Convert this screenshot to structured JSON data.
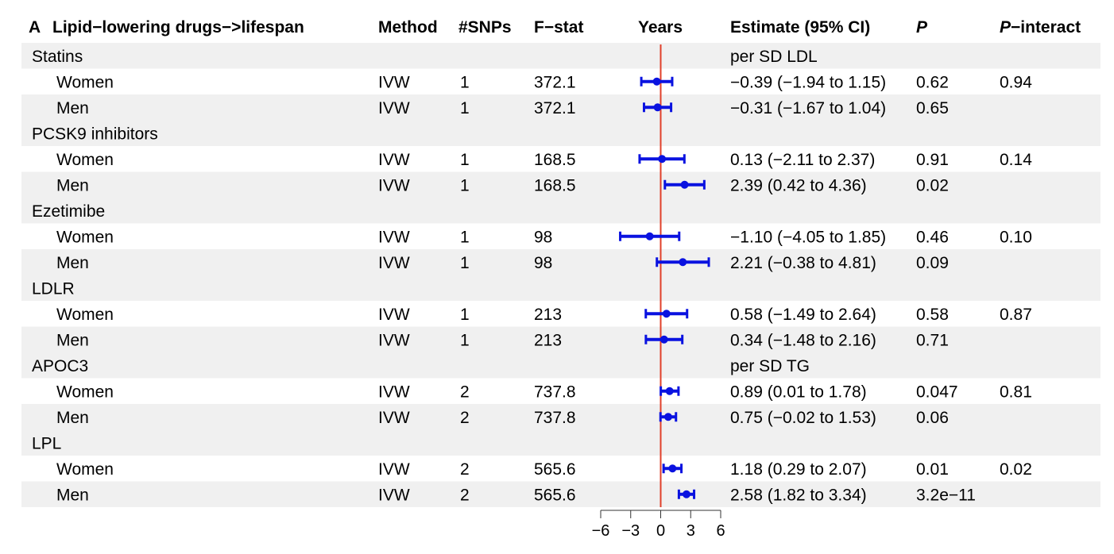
{
  "chart_data": {
    "type": "forest",
    "panel_label": "A",
    "title": "Lipid−lowering drugs−>lifespan",
    "headers": {
      "method": "Method",
      "snps": "#SNPs",
      "fstat": "F−stat",
      "years": "Years",
      "estimate": "Estimate (95% CI)",
      "p": "P",
      "p_interact_prefix": "P",
      "p_interact_suffix": "−interact"
    },
    "xlim": [
      -6,
      6
    ],
    "x_ticks": [
      -6,
      -3,
      0,
      3,
      6
    ],
    "x_tick_labels": [
      "−6",
      "−3",
      "0",
      "3",
      "6"
    ],
    "reference_line": 0,
    "colors": {
      "point": "#0a12e0",
      "reference": "#e0402a",
      "shade": "#f0f0f0"
    },
    "groups": [
      {
        "name": "Statins",
        "note": "per SD LDL",
        "rows": [
          {
            "label": "Women",
            "method": "IVW",
            "snps": "1",
            "fstat": "372.1",
            "est": -0.39,
            "lo": -1.94,
            "hi": 1.15,
            "ci_text": "−0.39 (−1.94 to 1.15)",
            "p": "0.62",
            "p_interact": "0.94"
          },
          {
            "label": "Men",
            "method": "IVW",
            "snps": "1",
            "fstat": "372.1",
            "est": -0.31,
            "lo": -1.67,
            "hi": 1.04,
            "ci_text": "−0.31 (−1.67 to 1.04)",
            "p": "0.65",
            "p_interact": ""
          }
        ]
      },
      {
        "name": "PCSK9 inhibitors",
        "note": "",
        "rows": [
          {
            "label": "Women",
            "method": "IVW",
            "snps": "1",
            "fstat": "168.5",
            "est": 0.13,
            "lo": -2.11,
            "hi": 2.37,
            "ci_text": "0.13 (−2.11 to 2.37)",
            "p": "0.91",
            "p_interact": "0.14"
          },
          {
            "label": "Men",
            "method": "IVW",
            "snps": "1",
            "fstat": "168.5",
            "est": 2.39,
            "lo": 0.42,
            "hi": 4.36,
            "ci_text": "2.39 (0.42 to 4.36)",
            "p": "0.02",
            "p_interact": ""
          }
        ]
      },
      {
        "name": "Ezetimibe",
        "note": "",
        "rows": [
          {
            "label": "Women",
            "method": "IVW",
            "snps": "1",
            "fstat": "98",
            "est": -1.1,
            "lo": -4.05,
            "hi": 1.85,
            "ci_text": "−1.10 (−4.05 to 1.85)",
            "p": "0.46",
            "p_interact": "0.10"
          },
          {
            "label": "Men",
            "method": "IVW",
            "snps": "1",
            "fstat": "98",
            "est": 2.21,
            "lo": -0.38,
            "hi": 4.81,
            "ci_text": "2.21 (−0.38 to 4.81)",
            "p": "0.09",
            "p_interact": ""
          }
        ]
      },
      {
        "name": "LDLR",
        "note": "",
        "rows": [
          {
            "label": "Women",
            "method": "IVW",
            "snps": "1",
            "fstat": "213",
            "est": 0.58,
            "lo": -1.49,
            "hi": 2.64,
            "ci_text": "0.58 (−1.49 to 2.64)",
            "p": "0.58",
            "p_interact": "0.87"
          },
          {
            "label": "Men",
            "method": "IVW",
            "snps": "1",
            "fstat": "213",
            "est": 0.34,
            "lo": -1.48,
            "hi": 2.16,
            "ci_text": "0.34 (−1.48 to 2.16)",
            "p": "0.71",
            "p_interact": ""
          }
        ]
      },
      {
        "name": "APOC3",
        "note": "per SD TG",
        "rows": [
          {
            "label": "Women",
            "method": "IVW",
            "snps": "2",
            "fstat": "737.8",
            "est": 0.89,
            "lo": 0.01,
            "hi": 1.78,
            "ci_text": "0.89 (0.01 to 1.78)",
            "p": "0.047",
            "p_interact": "0.81"
          },
          {
            "label": "Men",
            "method": "IVW",
            "snps": "2",
            "fstat": "737.8",
            "est": 0.75,
            "lo": -0.02,
            "hi": 1.53,
            "ci_text": "0.75 (−0.02 to 1.53)",
            "p": "0.06",
            "p_interact": ""
          }
        ]
      },
      {
        "name": "LPL",
        "note": "",
        "rows": [
          {
            "label": "Women",
            "method": "IVW",
            "snps": "2",
            "fstat": "565.6",
            "est": 1.18,
            "lo": 0.29,
            "hi": 2.07,
            "ci_text": "1.18 (0.29 to 2.07)",
            "p": "0.01",
            "p_interact": "0.02"
          },
          {
            "label": "Men",
            "method": "IVW",
            "snps": "2",
            "fstat": "565.6",
            "est": 2.58,
            "lo": 1.82,
            "hi": 3.34,
            "ci_text": "2.58 (1.82 to 3.34)",
            "p": "3.2e−11",
            "p_interact": ""
          }
        ]
      }
    ]
  }
}
